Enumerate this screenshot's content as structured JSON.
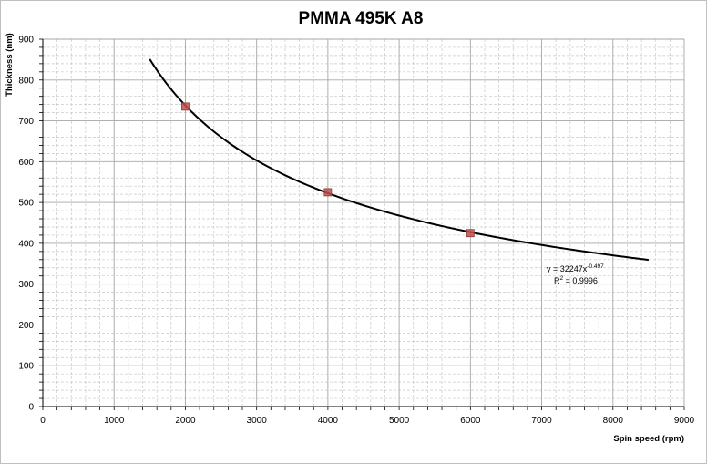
{
  "chart_data": {
    "type": "scatter",
    "title": "PMMA 495K A8",
    "xlabel": "Spin speed (rpm)",
    "ylabel": "Thickness (nm)",
    "xlim": [
      0,
      9000
    ],
    "ylim": [
      0,
      900
    ],
    "x_major_step": 1000,
    "x_minor_step": 200,
    "y_major_step": 100,
    "y_minor_step": 20,
    "x_ticks": [
      "0",
      "1000",
      "2000",
      "3000",
      "4000",
      "5000",
      "6000",
      "7000",
      "8000",
      "9000"
    ],
    "y_ticks": [
      "0",
      "100",
      "200",
      "300",
      "400",
      "500",
      "600",
      "700",
      "800",
      "900"
    ],
    "grid": "major solid gray, minor dashed light gray",
    "series": [
      {
        "points": [
          {
            "x": 2000,
            "y": 735
          },
          {
            "x": 4000,
            "y": 525
          },
          {
            "x": 6000,
            "y": 425
          }
        ],
        "marker": "square",
        "color": "#c0504d"
      }
    ],
    "trendline": {
      "kind": "power",
      "coefficient": 32247,
      "exponent": -0.497,
      "x_range": [
        1500,
        8500
      ],
      "color": "#000000",
      "equation_prefix": "y = 32247x",
      "equation_exponent": "-0.497",
      "r2_prefix": "R",
      "r2_exponent": "2",
      "r2_value": " = 0.9996"
    }
  }
}
